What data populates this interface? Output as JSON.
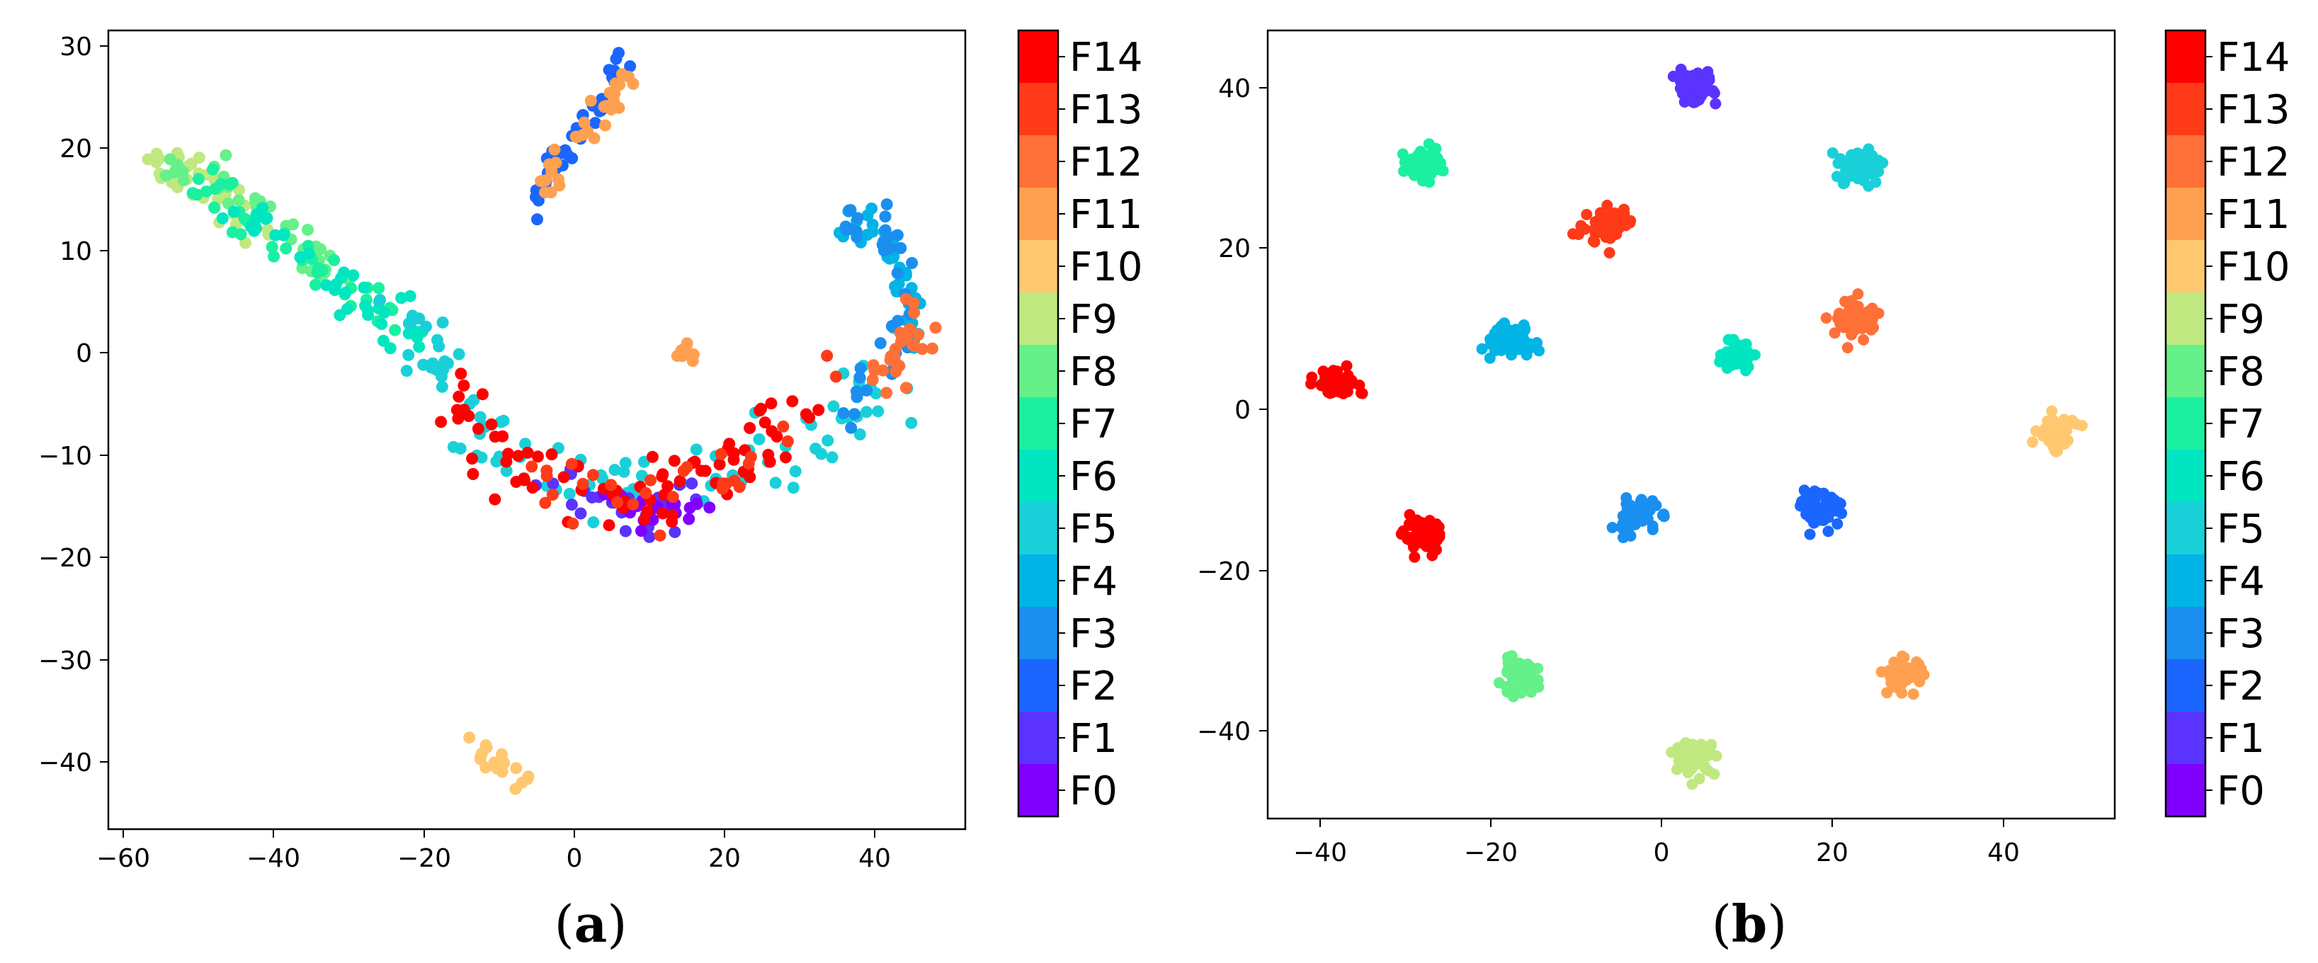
{
  "panels": [
    {
      "caption": "(a)",
      "caption_letter": "a",
      "xticks": [
        "−60",
        "−40",
        "−20",
        "0",
        "20",
        "40"
      ],
      "yticks": [
        "30",
        "20",
        "10",
        "0",
        "−10",
        "−20",
        "−30",
        "−40"
      ]
    },
    {
      "caption": "(b)",
      "caption_letter": "b",
      "xticks": [
        "−40",
        "−20",
        "0",
        "20",
        "40"
      ],
      "yticks": [
        "40",
        "20",
        "0",
        "−20",
        "−40"
      ]
    }
  ],
  "colorbar_labels": [
    "F14",
    "F13",
    "F12",
    "F11",
    "F10",
    "F9",
    "F8",
    "F7",
    "F6",
    "F5",
    "F4",
    "F3",
    "F2",
    "F1",
    "F0"
  ],
  "colors": {
    "F0": "#8000ff",
    "F1": "#5a33ff",
    "F2": "#1a66ff",
    "F3": "#1a8ff0",
    "F4": "#00b4e6",
    "F5": "#1ad0d8",
    "F6": "#00e6c0",
    "F7": "#1af0a0",
    "F8": "#66f08a",
    "F9": "#c0e880",
    "F10": "#ffc870",
    "F11": "#ffa050",
    "F12": "#ff7038",
    "F13": "#ff3a18",
    "F14": "#ff0000"
  },
  "chart_data": [
    {
      "type": "scatter",
      "title": "",
      "xlabel": "",
      "ylabel": "",
      "xlim": [
        -62,
        52
      ],
      "ylim": [
        -46,
        31
      ],
      "x_ticks": [
        -60,
        -40,
        -20,
        0,
        20,
        40
      ],
      "y_ticks": [
        30,
        20,
        10,
        0,
        -10,
        -20,
        -30,
        -40
      ],
      "grid": false,
      "legend": "colorbar right, classes F0 to F14",
      "clusters": [
        {
          "class": "F9",
          "path": [
            [
              -57,
              19
            ],
            [
              -53,
              18
            ],
            [
              -49,
              16
            ],
            [
              -46,
              14
            ],
            [
              -42,
              12
            ]
          ],
          "spread": 1.2
        },
        {
          "class": "F8",
          "path": [
            [
              -55,
              19
            ],
            [
              -47,
              17
            ],
            [
              -40,
              13
            ],
            [
              -35,
              9
            ],
            [
              -32,
              7
            ]
          ],
          "spread": 1.2
        },
        {
          "class": "F7",
          "path": [
            [
              -52,
              18
            ],
            [
              -46,
              14
            ],
            [
              -38,
              10
            ],
            [
              -30,
              6
            ],
            [
              -24,
              3
            ]
          ],
          "spread": 1.0
        },
        {
          "class": "F6",
          "path": [
            [
              -48,
              15
            ],
            [
              -40,
              12
            ],
            [
              -30,
              6
            ],
            [
              -24,
              3
            ],
            [
              -19,
              0
            ]
          ],
          "spread": 1.0
        },
        {
          "class": "F5",
          "path": [
            [
              -24,
              4
            ],
            [
              -19,
              0
            ],
            [
              -17,
              -3
            ],
            [
              -12,
              -8
            ],
            [
              -5,
              -12
            ],
            [
              5,
              -13
            ],
            [
              15,
              -13
            ],
            [
              25,
              -10
            ],
            [
              33,
              -7
            ],
            [
              39,
              -4
            ],
            [
              44,
              1
            ]
          ],
          "spread": 1.8
        },
        {
          "class": "F4",
          "path": [
            [
              34,
              13
            ],
            [
              40,
              12
            ],
            [
              43,
              9
            ],
            [
              45,
              5
            ],
            [
              45,
              1
            ]
          ],
          "spread": 0.8
        },
        {
          "class": "F3",
          "path": [
            [
              36,
              13
            ],
            [
              41,
              11
            ],
            [
              44,
              7
            ],
            [
              42,
              -1
            ],
            [
              35,
              -6
            ]
          ],
          "spread": 1.0
        },
        {
          "class": "F2",
          "path": [
            [
              -5,
              14
            ],
            [
              -3,
              18
            ],
            [
              0,
              21
            ],
            [
              4,
              24
            ],
            [
              7,
              28
            ]
          ],
          "spread": 0.7
        },
        {
          "class": "F1",
          "path": [
            [
              -6,
              -11
            ],
            [
              3,
              -14
            ],
            [
              11,
              -16
            ],
            [
              17,
              -14
            ]
          ],
          "spread": 1.2
        },
        {
          "class": "F0",
          "path": [
            [
              5,
              -14
            ],
            [
              10,
              -16
            ],
            [
              18,
              -15
            ]
          ],
          "spread": 1.0
        },
        {
          "class": "F14",
          "path": [
            [
              -18,
              -3
            ],
            [
              -14,
              -7
            ],
            [
              -8,
              -11
            ],
            [
              0,
              -13
            ],
            [
              8,
              -15
            ],
            [
              15,
              -13
            ],
            [
              19,
              -10
            ],
            [
              26,
              -8
            ],
            [
              31,
              -4
            ]
          ],
          "spread": 2.0
        },
        {
          "class": "F13",
          "path": [
            [
              -10,
              -11
            ],
            [
              5,
              -13
            ],
            [
              20,
              -12
            ],
            [
              35,
              -3
            ]
          ],
          "spread": 1.8
        },
        {
          "class": "F12",
          "path": [
            [
              38,
              -3
            ],
            [
              42,
              -1
            ],
            [
              45,
              2
            ],
            [
              46,
              4
            ]
          ],
          "spread": 1.2
        },
        {
          "class": "F11",
          "path": [
            [
              -5,
              15
            ],
            [
              0,
              20
            ],
            [
              4,
              23
            ],
            [
              7,
              27
            ]
          ],
          "spread": 0.9
        },
        {
          "class": "F11",
          "path": [
            [
              14,
              0
            ],
            [
              15,
              -0.5
            ]
          ],
          "spread": 0.5
        },
        {
          "class": "F10",
          "path": [
            [
              -14,
              -39
            ],
            [
              -10,
              -40
            ],
            [
              -7,
              -42
            ]
          ],
          "spread": 0.8
        }
      ]
    },
    {
      "type": "scatter",
      "title": "",
      "xlabel": "",
      "ylabel": "",
      "xlim": [
        -47,
        53
      ],
      "ylim": [
        -51,
        47
      ],
      "x_ticks": [
        -40,
        -20,
        0,
        20,
        40
      ],
      "y_ticks": [
        40,
        20,
        0,
        -20,
        -40
      ],
      "grid": false,
      "legend": "colorbar right, classes F0 to F14",
      "clusters": [
        {
          "class": "F1",
          "center": [
            3.5,
            40
          ],
          "spread": 1.3
        },
        {
          "class": "F7",
          "center": [
            -29,
            30.5
          ],
          "spread": 1.4
        },
        {
          "class": "F5",
          "center": [
            23,
            30
          ],
          "spread": 1.4
        },
        {
          "class": "F13",
          "center": [
            -7,
            22.5
          ],
          "spread": 1.4
        },
        {
          "class": "F12",
          "center": [
            22.5,
            11.5
          ],
          "spread": 1.4
        },
        {
          "class": "F4",
          "center": [
            -18,
            8.5
          ],
          "spread": 1.4
        },
        {
          "class": "F6",
          "center": [
            8.5,
            6.5
          ],
          "spread": 1.0
        },
        {
          "class": "F14",
          "center": [
            -39,
            3
          ],
          "spread": 1.3
        },
        {
          "class": "F10",
          "center": [
            46,
            -3
          ],
          "spread": 1.2
        },
        {
          "class": "F3",
          "center": [
            -3.5,
            -13.5
          ],
          "spread": 1.4
        },
        {
          "class": "F2",
          "center": [
            18.5,
            -12.5
          ],
          "spread": 1.4
        },
        {
          "class": "F14",
          "center": [
            -28.5,
            -16
          ],
          "spread": 1.3
        },
        {
          "class": "F8",
          "center": [
            -17.5,
            -33.5
          ],
          "spread": 1.3
        },
        {
          "class": "F11",
          "center": [
            28,
            -33
          ],
          "spread": 1.3
        },
        {
          "class": "F9",
          "center": [
            3.5,
            -43.5
          ],
          "spread": 1.3
        }
      ]
    }
  ]
}
